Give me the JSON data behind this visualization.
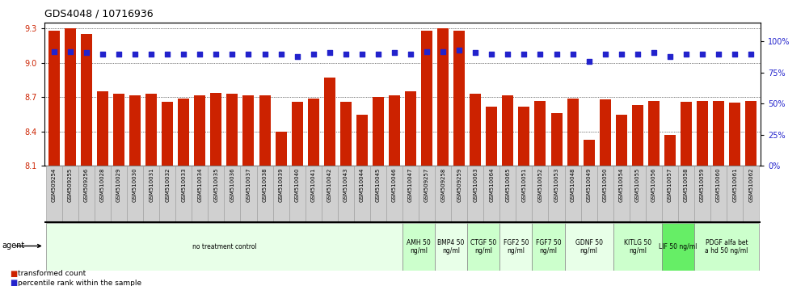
{
  "title": "GDS4048 / 10716936",
  "categories": [
    "GSM509254",
    "GSM509255",
    "GSM509256",
    "GSM510028",
    "GSM510029",
    "GSM510030",
    "GSM510031",
    "GSM510032",
    "GSM510033",
    "GSM510034",
    "GSM510035",
    "GSM510036",
    "GSM510037",
    "GSM510038",
    "GSM510039",
    "GSM510040",
    "GSM510041",
    "GSM510042",
    "GSM510043",
    "GSM510044",
    "GSM510045",
    "GSM510046",
    "GSM510047",
    "GSM509257",
    "GSM509258",
    "GSM509259",
    "GSM510063",
    "GSM510064",
    "GSM510065",
    "GSM510051",
    "GSM510052",
    "GSM510053",
    "GSM510048",
    "GSM510049",
    "GSM510050",
    "GSM510054",
    "GSM510055",
    "GSM510056",
    "GSM510057",
    "GSM510058",
    "GSM510059",
    "GSM510060",
    "GSM510061",
    "GSM510062"
  ],
  "bar_values": [
    9.28,
    9.3,
    9.25,
    8.75,
    8.73,
    8.72,
    8.73,
    8.66,
    8.69,
    8.72,
    8.74,
    8.73,
    8.72,
    8.72,
    8.4,
    8.66,
    8.69,
    8.87,
    8.66,
    8.55,
    8.7,
    8.72,
    8.75,
    9.28,
    9.3,
    9.28,
    8.73,
    8.62,
    8.72,
    8.62,
    8.67,
    8.56,
    8.69,
    8.33,
    8.68,
    8.55,
    8.63,
    8.67,
    8.37,
    8.66,
    8.67,
    8.67,
    8.65,
    8.67
  ],
  "percentile_values": [
    92,
    92,
    91,
    90,
    90,
    90,
    90,
    90,
    90,
    90,
    90,
    90,
    90,
    90,
    90,
    88,
    90,
    91,
    90,
    90,
    90,
    91,
    90,
    92,
    92,
    93,
    91,
    90,
    90,
    90,
    90,
    90,
    90,
    84,
    90,
    90,
    90,
    91,
    88,
    90,
    90,
    90,
    90,
    90
  ],
  "ylim_left": [
    8.1,
    9.35
  ],
  "yticks_left": [
    8.1,
    8.4,
    8.7,
    9.0,
    9.3
  ],
  "ylim_right": [
    0,
    115
  ],
  "yticks_right": [
    0,
    25,
    50,
    75,
    100
  ],
  "bar_color": "#CC2200",
  "dot_color": "#2222CC",
  "agent_groups": [
    {
      "label": "no treatment control",
      "start": 0,
      "end": 22,
      "color": "#e8ffe8"
    },
    {
      "label": "AMH 50\nng/ml",
      "start": 22,
      "end": 24,
      "color": "#ccffcc"
    },
    {
      "label": "BMP4 50\nng/ml",
      "start": 24,
      "end": 26,
      "color": "#e8ffe8"
    },
    {
      "label": "CTGF 50\nng/ml",
      "start": 26,
      "end": 28,
      "color": "#ccffcc"
    },
    {
      "label": "FGF2 50\nng/ml",
      "start": 28,
      "end": 30,
      "color": "#e8ffe8"
    },
    {
      "label": "FGF7 50\nng/ml",
      "start": 30,
      "end": 32,
      "color": "#ccffcc"
    },
    {
      "label": "GDNF 50\nng/ml",
      "start": 32,
      "end": 35,
      "color": "#e8ffe8"
    },
    {
      "label": "KITLG 50\nng/ml",
      "start": 35,
      "end": 38,
      "color": "#ccffcc"
    },
    {
      "label": "LIF 50 ng/ml",
      "start": 38,
      "end": 40,
      "color": "#66ee66"
    },
    {
      "label": "PDGF alfa bet\na hd 50 ng/ml",
      "start": 40,
      "end": 44,
      "color": "#ccffcc"
    }
  ]
}
